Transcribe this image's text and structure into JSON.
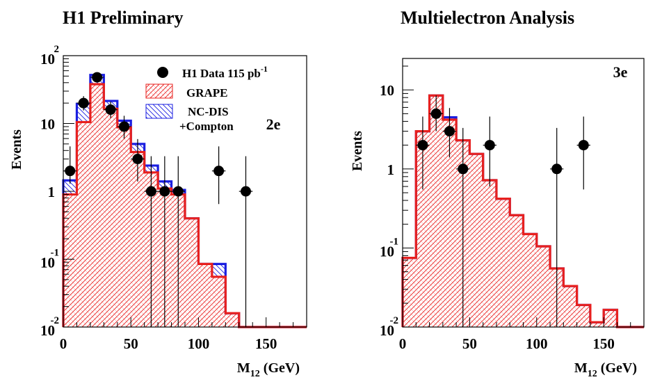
{
  "header": {
    "left_title": "H1 Preliminary",
    "right_title": "Multielectron Analysis"
  },
  "legend": {
    "data_label": "H1 Data 115 pb",
    "data_sup": "-1",
    "grape_label": "GRAPE",
    "ncdis_label_1": "NC-DIS",
    "ncdis_label_2": "+Compton"
  },
  "colors": {
    "grape": "#e8201e",
    "ncdis": "#1a1ee0",
    "data": "#000000"
  },
  "chart_data": [
    {
      "type": "bar",
      "tag": "2e",
      "xlabel_main": "M",
      "xlabel_sub": "12",
      "xlabel_unit": "(GeV)",
      "ylabel": "Events",
      "xlim": [
        0,
        180
      ],
      "ylim": [
        0.01,
        100
      ],
      "log_y": true,
      "bin_width": 10,
      "x_ticks": [
        0,
        50,
        100,
        150
      ],
      "y_ticks": [
        {
          "value": 0.01,
          "base": "10",
          "exp": "-2"
        },
        {
          "value": 0.1,
          "base": "10",
          "exp": "-1"
        },
        {
          "value": 1,
          "base": "1",
          "exp": ""
        },
        {
          "value": 10,
          "base": "10",
          "exp": ""
        },
        {
          "value": 100,
          "base": "10",
          "exp": "2"
        }
      ],
      "bin_edges": [
        0,
        10,
        20,
        30,
        40,
        50,
        60,
        70,
        80,
        90,
        100,
        110,
        120,
        130,
        140,
        150,
        160,
        170,
        180
      ],
      "series": [
        {
          "name": "NC-DIS +Compton",
          "values": [
            1.45,
            19.5,
            52,
            21.5,
            11.0,
            5.0,
            2.4,
            1.4,
            1.05,
            0.4,
            0.085,
            0.085,
            0.016,
            0.01,
            0.01,
            0.01,
            0.01,
            0.01
          ]
        },
        {
          "name": "GRAPE",
          "values": [
            0.9,
            10.5,
            38.0,
            16.5,
            8.8,
            3.8,
            1.9,
            1.1,
            0.9,
            0.4,
            0.085,
            0.055,
            0.016,
            0.01,
            0.01,
            0.01,
            0.01,
            0.01
          ]
        }
      ],
      "data_points": [
        {
          "x": 5,
          "y": 2,
          "err_lo": 1.3,
          "err_hi": 4.6
        },
        {
          "x": 15,
          "y": 20,
          "err_lo": 15.6,
          "err_hi": 25.3
        },
        {
          "x": 25,
          "y": 48,
          "err_lo": 41,
          "err_hi": 56
        },
        {
          "x": 35,
          "y": 16,
          "err_lo": 12,
          "err_hi": 21
        },
        {
          "x": 45,
          "y": 9,
          "err_lo": 6,
          "err_hi": 13
        },
        {
          "x": 55,
          "y": 3,
          "err_lo": 1.4,
          "err_hi": 5.9
        },
        {
          "x": 65,
          "y": 1,
          "err_lo": 0.01,
          "err_hi": 3.3
        },
        {
          "x": 75,
          "y": 1,
          "err_lo": 0.01,
          "err_hi": 3.3
        },
        {
          "x": 85,
          "y": 1,
          "err_lo": 0.01,
          "err_hi": 3.3
        },
        {
          "x": 115,
          "y": 2,
          "err_lo": 0.65,
          "err_hi": 4.6
        },
        {
          "x": 135,
          "y": 1,
          "err_lo": 0.01,
          "err_hi": 3.3
        }
      ]
    },
    {
      "type": "bar",
      "tag": "3e",
      "xlabel_main": "M",
      "xlabel_sub": "12",
      "xlabel_unit": "(GeV)",
      "ylabel": "Events",
      "xlim": [
        0,
        180
      ],
      "ylim": [
        0.01,
        25
      ],
      "log_y": true,
      "bin_width": 10,
      "x_ticks": [
        0,
        50,
        100,
        150
      ],
      "y_ticks": [
        {
          "value": 0.01,
          "base": "10",
          "exp": "-2"
        },
        {
          "value": 0.1,
          "base": "10",
          "exp": "-1"
        },
        {
          "value": 1,
          "base": "1",
          "exp": ""
        },
        {
          "value": 10,
          "base": "10",
          "exp": ""
        }
      ],
      "bin_edges": [
        0,
        10,
        20,
        30,
        40,
        50,
        60,
        70,
        80,
        90,
        100,
        110,
        120,
        130,
        140,
        150,
        160,
        170,
        180
      ],
      "series": [
        {
          "name": "NC-DIS +Compton",
          "values": [
            0.075,
            3.0,
            8.5,
            4.5,
            2.3,
            1.55,
            0.72,
            0.42,
            0.26,
            0.15,
            0.105,
            0.055,
            0.033,
            0.019,
            0.0115,
            0.0165,
            0.01,
            0.01
          ]
        },
        {
          "name": "GRAPE",
          "values": [
            0.075,
            3.0,
            8.5,
            4.2,
            2.3,
            1.55,
            0.72,
            0.42,
            0.26,
            0.15,
            0.105,
            0.055,
            0.033,
            0.019,
            0.0115,
            0.0165,
            0.01,
            0.01
          ]
        }
      ],
      "data_points": [
        {
          "x": 15,
          "y": 2,
          "err_lo": 0.55,
          "err_hi": 4.6
        },
        {
          "x": 25,
          "y": 5,
          "err_lo": 3.0,
          "err_hi": 8.5
        },
        {
          "x": 35,
          "y": 3,
          "err_lo": 1.4,
          "err_hi": 5.9
        },
        {
          "x": 45,
          "y": 1,
          "err_lo": 0.01,
          "err_hi": 3.3
        },
        {
          "x": 65,
          "y": 2,
          "err_lo": 0.6,
          "err_hi": 4.6
        },
        {
          "x": 115,
          "y": 1,
          "err_lo": 0.01,
          "err_hi": 3.3
        },
        {
          "x": 135,
          "y": 2,
          "err_lo": 0.55,
          "err_hi": 4.6
        }
      ]
    }
  ]
}
